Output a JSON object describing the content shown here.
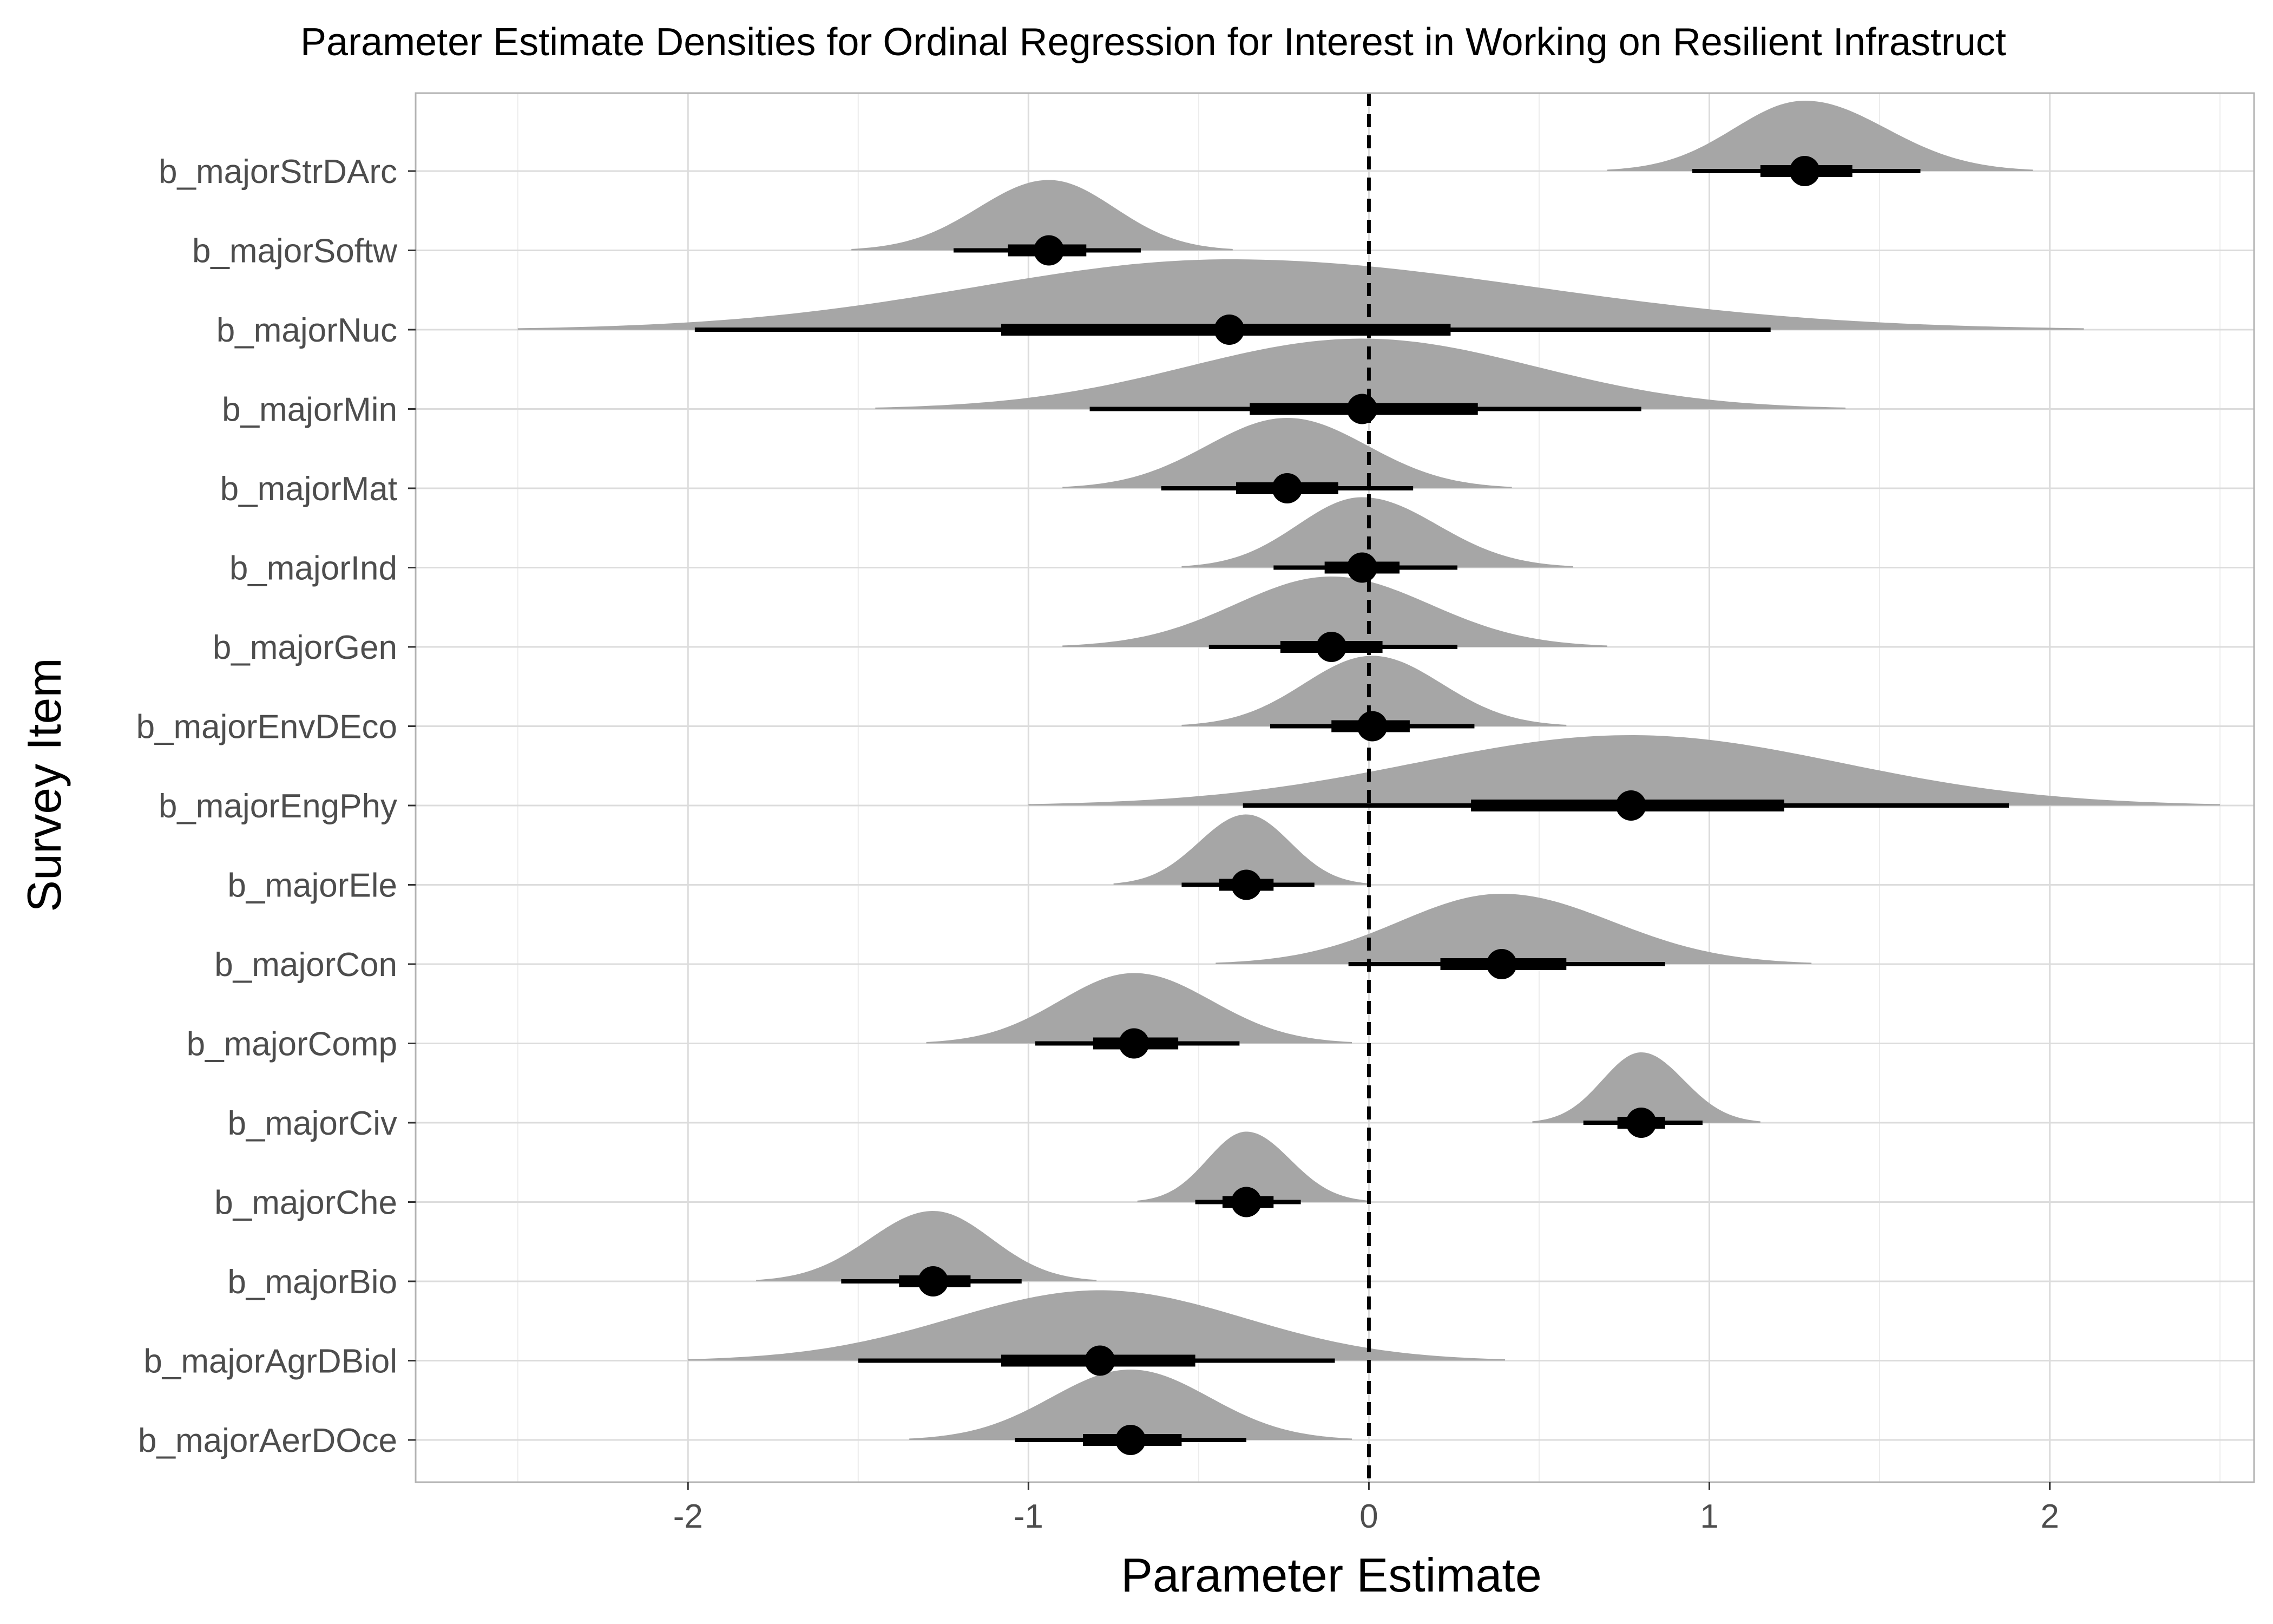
{
  "chart_data": {
    "type": "interval-density",
    "title": "Parameter Estimate Densities for Ordinal Regression for Interest in Working on Resilient Infrastruct",
    "xlabel": "Parameter Estimate",
    "ylabel": "Survey Item",
    "xlim": [
      -2.8,
      2.6
    ],
    "xticks": [
      -2,
      -1,
      0,
      1,
      2
    ],
    "grid": true,
    "reference_line": {
      "x": 0,
      "style": "dashed"
    },
    "colors": {
      "density": "#a6a6a6",
      "interval": "#000000",
      "grid": "#dcdcdc",
      "panel_border": "#b3b3b3"
    },
    "items": [
      {
        "name": "b_majorStrDArc",
        "median": 1.28,
        "inner": [
          1.15,
          1.42
        ],
        "outer": [
          0.95,
          1.62
        ],
        "density": [
          0.7,
          1.95
        ]
      },
      {
        "name": "b_majorSoftw",
        "median": -0.94,
        "inner": [
          -1.06,
          -0.83
        ],
        "outer": [
          -1.22,
          -0.67
        ],
        "density": [
          -1.52,
          -0.4
        ]
      },
      {
        "name": "b_majorNuc",
        "median": -0.41,
        "inner": [
          -1.08,
          0.24
        ],
        "outer": [
          -1.98,
          1.18
        ],
        "density": [
          -2.5,
          2.1
        ]
      },
      {
        "name": "b_majorMin",
        "median": -0.02,
        "inner": [
          -0.35,
          0.32
        ],
        "outer": [
          -0.82,
          0.8
        ],
        "density": [
          -1.45,
          1.4
        ]
      },
      {
        "name": "b_majorMat",
        "median": -0.24,
        "inner": [
          -0.39,
          -0.09
        ],
        "outer": [
          -0.61,
          0.13
        ],
        "density": [
          -0.9,
          0.42
        ]
      },
      {
        "name": "b_majorInd",
        "median": -0.02,
        "inner": [
          -0.13,
          0.09
        ],
        "outer": [
          -0.28,
          0.26
        ],
        "density": [
          -0.55,
          0.6
        ]
      },
      {
        "name": "b_majorGen",
        "median": -0.11,
        "inner": [
          -0.26,
          0.04
        ],
        "outer": [
          -0.47,
          0.26
        ],
        "density": [
          -0.9,
          0.7
        ]
      },
      {
        "name": "b_majorEnvDEco",
        "median": 0.01,
        "inner": [
          -0.11,
          0.12
        ],
        "outer": [
          -0.29,
          0.31
        ],
        "density": [
          -0.55,
          0.58
        ]
      },
      {
        "name": "b_majorEngPhy",
        "median": 0.77,
        "inner": [
          0.3,
          1.22
        ],
        "outer": [
          -0.37,
          1.88
        ],
        "density": [
          -1.0,
          2.5
        ]
      },
      {
        "name": "b_majorEle",
        "median": -0.36,
        "inner": [
          -0.44,
          -0.28
        ],
        "outer": [
          -0.55,
          -0.16
        ],
        "density": [
          -0.75,
          0.0
        ]
      },
      {
        "name": "b_majorCon",
        "median": 0.39,
        "inner": [
          0.21,
          0.58
        ],
        "outer": [
          -0.06,
          0.87
        ],
        "density": [
          -0.45,
          1.3
        ]
      },
      {
        "name": "b_majorComp",
        "median": -0.69,
        "inner": [
          -0.81,
          -0.56
        ],
        "outer": [
          -0.98,
          -0.38
        ],
        "density": [
          -1.3,
          -0.05
        ]
      },
      {
        "name": "b_majorCiv",
        "median": 0.8,
        "inner": [
          0.73,
          0.87
        ],
        "outer": [
          0.63,
          0.98
        ],
        "density": [
          0.48,
          1.15
        ]
      },
      {
        "name": "b_majorChe",
        "median": -0.36,
        "inner": [
          -0.43,
          -0.28
        ],
        "outer": [
          -0.51,
          -0.2
        ],
        "density": [
          -0.68,
          0.0
        ]
      },
      {
        "name": "b_majorBio",
        "median": -1.28,
        "inner": [
          -1.38,
          -1.17
        ],
        "outer": [
          -1.55,
          -1.02
        ],
        "density": [
          -1.8,
          -0.8
        ]
      },
      {
        "name": "b_majorAgrDBiol",
        "median": -0.79,
        "inner": [
          -1.08,
          -0.51
        ],
        "outer": [
          -1.5,
          -0.1
        ],
        "density": [
          -2.0,
          0.4
        ]
      },
      {
        "name": "b_majorAerDOce",
        "median": -0.7,
        "inner": [
          -0.84,
          -0.55
        ],
        "outer": [
          -1.04,
          -0.36
        ],
        "density": [
          -1.35,
          -0.05
        ]
      }
    ]
  }
}
